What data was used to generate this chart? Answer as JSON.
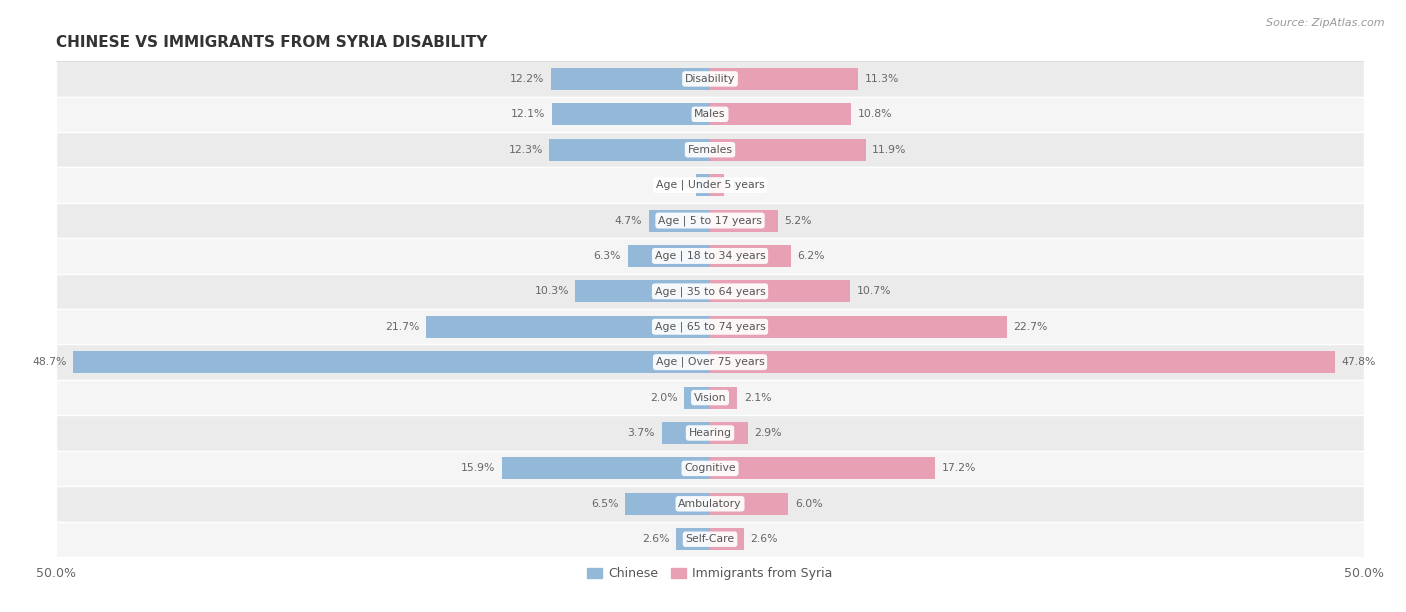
{
  "title": "CHINESE VS IMMIGRANTS FROM SYRIA DISABILITY",
  "source": "Source: ZipAtlas.com",
  "categories": [
    "Disability",
    "Males",
    "Females",
    "Age | Under 5 years",
    "Age | 5 to 17 years",
    "Age | 18 to 34 years",
    "Age | 35 to 64 years",
    "Age | 65 to 74 years",
    "Age | Over 75 years",
    "Vision",
    "Hearing",
    "Cognitive",
    "Ambulatory",
    "Self-Care"
  ],
  "chinese": [
    12.2,
    12.1,
    12.3,
    1.1,
    4.7,
    6.3,
    10.3,
    21.7,
    48.7,
    2.0,
    3.7,
    15.9,
    6.5,
    2.6
  ],
  "syria": [
    11.3,
    10.8,
    11.9,
    1.1,
    5.2,
    6.2,
    10.7,
    22.7,
    47.8,
    2.1,
    2.9,
    17.2,
    6.0,
    2.6
  ],
  "chinese_color": "#94b8d8",
  "syria_color": "#e8a0b4",
  "chinese_label": "Chinese",
  "syria_label": "Immigrants from Syria",
  "x_max": 50.0,
  "row_bg_odd": "#ebebeb",
  "row_bg_even": "#f5f5f5"
}
